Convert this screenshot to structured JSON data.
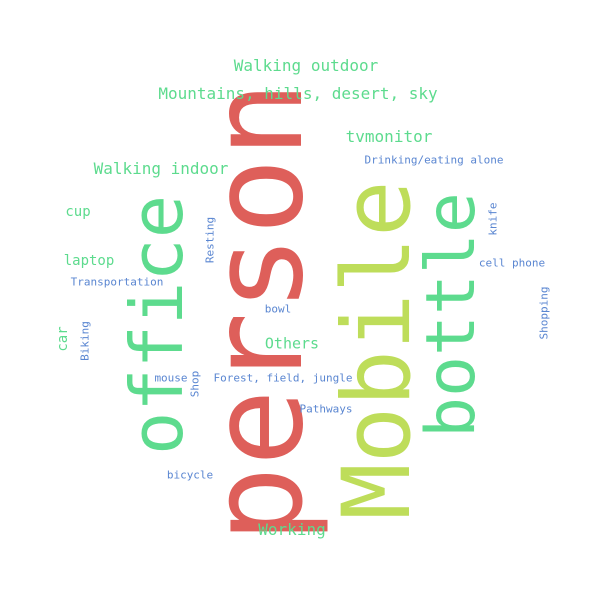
{
  "colors": {
    "red": "#de5f5a",
    "lime": "#bedd5a",
    "green": "#5ddb8e",
    "blue": "#5a86d1",
    "background": "#ffffff"
  },
  "words": {
    "person": "person",
    "mobile": "Mobile",
    "office": "office",
    "bottle": "bottle",
    "walking_outdoor": "Walking outdoor",
    "mountains": "Mountains, hills, desert, sky",
    "tvmonitor": "tvmonitor",
    "walking_indoor": "Walking indoor",
    "drinking": "Drinking/eating alone",
    "cup": "cup",
    "knife": "knife",
    "resting": "Resting",
    "laptop": "laptop",
    "cell_phone": "cell phone",
    "transportation": "Transportation",
    "shopping": "Shopping",
    "bowl": "bowl",
    "car": "car",
    "biking": "Biking",
    "others": "Others",
    "mouse": "mouse",
    "shop": "Shop",
    "forest": "Forest, field, jungle",
    "pathways": "Pathways",
    "bicycle": "bicycle",
    "working": "Working"
  }
}
